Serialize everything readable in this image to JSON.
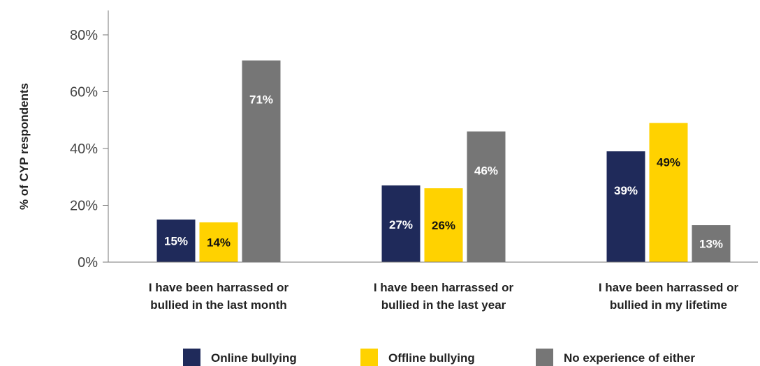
{
  "chart_data": {
    "type": "bar",
    "ylabel": "% of CYP respondents",
    "ylim": [
      0,
      80
    ],
    "yticks": [
      "0%",
      "20%",
      "40%",
      "60%",
      "80%"
    ],
    "ytick_values": [
      0,
      20,
      40,
      60,
      80
    ],
    "categories": [
      [
        "I have been harrassed or",
        "bullied in the last month"
      ],
      [
        "I have been harrassed or",
        "bullied in the last year"
      ],
      [
        "I have been harrassed or",
        "bullied in my lifetime"
      ]
    ],
    "series": [
      {
        "name": "Online bullying",
        "color": "#1f2a5a",
        "label_color": "#ffffff",
        "values": [
          15,
          27,
          39
        ],
        "labels": [
          "15%",
          "27%",
          "39%"
        ]
      },
      {
        "name": "Offline bullying",
        "color": "#ffd200",
        "label_color": "#111111",
        "values": [
          14,
          26,
          49
        ],
        "labels": [
          "14%",
          "26%",
          "49%"
        ]
      },
      {
        "name": "No experience of either",
        "color": "#767676",
        "label_color": "#ffffff",
        "values": [
          71,
          46,
          13
        ],
        "labels": [
          "71%",
          "46%",
          "13%"
        ]
      }
    ],
    "grid": false,
    "legend_position": "bottom"
  }
}
